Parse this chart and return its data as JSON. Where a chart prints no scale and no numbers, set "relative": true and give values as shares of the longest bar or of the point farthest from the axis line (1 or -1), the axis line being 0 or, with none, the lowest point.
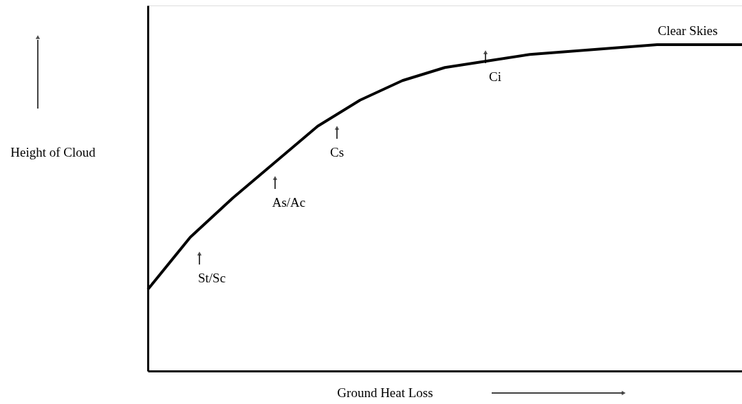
{
  "chart_data": {
    "type": "line",
    "relative": true,
    "xlabel": "Ground Heat Loss",
    "ylabel": "Height of Cloud",
    "categories": [
      null,
      null,
      null,
      null,
      null,
      null,
      null,
      null,
      null,
      null,
      null,
      null,
      null,
      null,
      null
    ],
    "series": [
      {
        "color": "#000000",
        "values": [
          0.25,
          0.41,
          0.53,
          0.64,
          0.75,
          0.83,
          0.89,
          0.93,
          0.95,
          0.97,
          0.98,
          0.99,
          1,
          1,
          1
        ]
      }
    ],
    "annotations": [
      "St/Sc",
      "As/Ac",
      "Cs",
      "Ci",
      "Clear Skies"
    ],
    "marker": "none",
    "line_style": "solid"
  }
}
